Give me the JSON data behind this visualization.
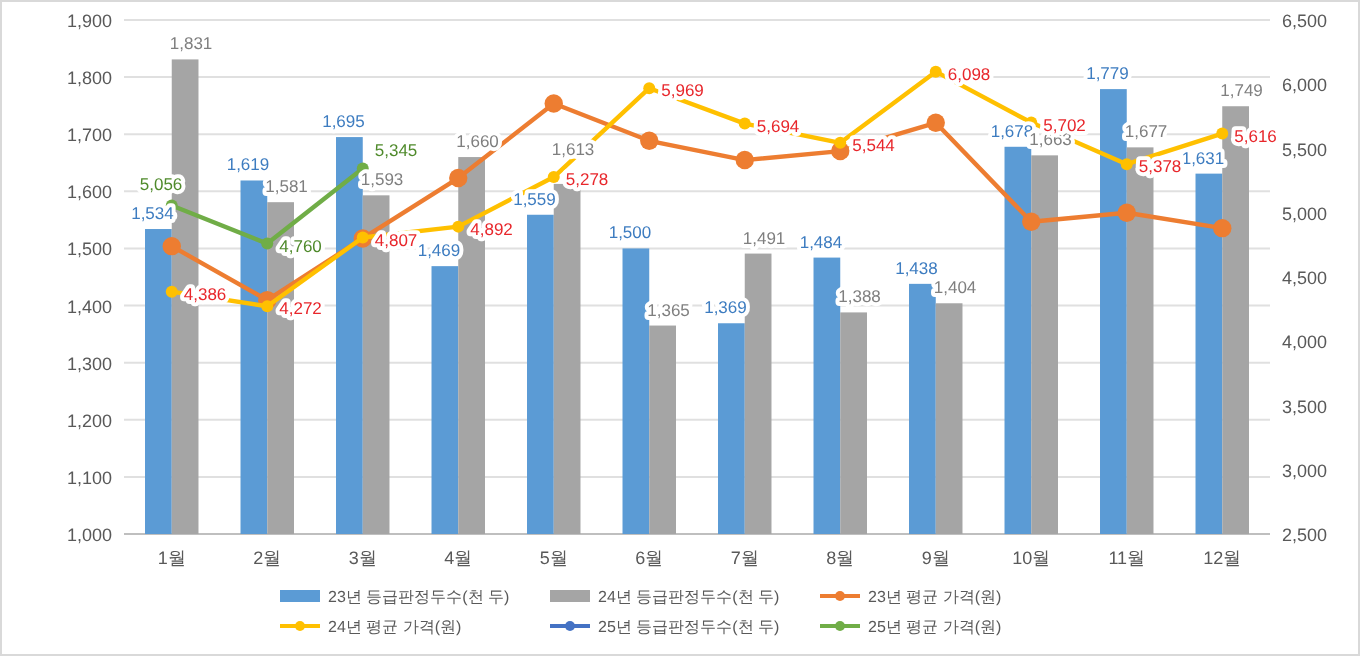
{
  "chart_data": {
    "type": "bar",
    "categories": [
      "1월",
      "2월",
      "3월",
      "4월",
      "5월",
      "6월",
      "7월",
      "8월",
      "9월",
      "10월",
      "11월",
      "12월"
    ],
    "series": [
      {
        "name": "23년 등급판정두수(천 두)",
        "color": "#5b9bd5",
        "values": [
          1534,
          1619,
          1695,
          1469,
          1559,
          1500,
          1369,
          1484,
          1438,
          1678,
          1779,
          1631
        ],
        "value_labels": [
          "1,534",
          "1,619",
          "1,695",
          "1,469",
          "1,559",
          "1,500",
          "1,369",
          "1,484",
          "1,438",
          "1,678",
          "1,779",
          "1,631"
        ]
      },
      {
        "name": "24년 등급판정두수(천 두)",
        "color": "#a5a5a5",
        "values": [
          1831,
          1581,
          1593,
          1660,
          1613,
          1365,
          1491,
          1388,
          1404,
          1663,
          1677,
          1749
        ],
        "value_labels": [
          "1,831",
          "1,581",
          "1,593",
          "1,660",
          "1,613",
          "1,365",
          "1,491",
          "1,388",
          "1,404",
          "1,663",
          "1,677",
          "1,749"
        ]
      },
      {
        "name": "23년 평균 가격(원)",
        "type": "line",
        "axis": "y2",
        "color": "#ed7d31",
        "values": [
          4740,
          4320,
          4800,
          5270,
          5850,
          5560,
          5410,
          5480,
          5700,
          4930,
          5000,
          4880
        ]
      },
      {
        "name": "24년 평균 가격(원)",
        "type": "line",
        "axis": "y2",
        "color": "#ffc000",
        "values": [
          4386,
          4272,
          4807,
          4892,
          5278,
          5969,
          5694,
          5544,
          6098,
          5702,
          5378,
          5616
        ],
        "value_labels": [
          "4,386",
          "4,272",
          "4,807",
          "4,892",
          "5,278",
          "5,969",
          "5,694",
          "5,544",
          "6,098",
          "5,702",
          "5,378",
          "5,616"
        ]
      },
      {
        "name": "25년 등급판정두수(천 두)",
        "type": "line",
        "color": "#4472c4",
        "values": [
          null,
          null,
          null,
          null,
          null,
          null,
          null,
          null,
          null,
          null,
          null,
          null
        ]
      },
      {
        "name": "25년 평균 가격(원)",
        "type": "line",
        "axis": "y2",
        "color": "#70ad47",
        "values": [
          5056,
          4760,
          5345,
          null,
          null,
          null,
          null,
          null,
          null,
          null,
          null,
          null
        ],
        "value_labels": [
          "5,056",
          "4,760",
          "5,345",
          null,
          null,
          null,
          null,
          null,
          null,
          null,
          null,
          null
        ]
      }
    ],
    "ylim": [
      1000,
      1900
    ],
    "yticks": [
      {
        "value": 1000,
        "label": "1,000"
      },
      {
        "value": 1100,
        "label": "1,100"
      },
      {
        "value": 1200,
        "label": "1,200"
      },
      {
        "value": 1300,
        "label": "1,300"
      },
      {
        "value": 1400,
        "label": "1,400"
      },
      {
        "value": 1500,
        "label": "1,500"
      },
      {
        "value": 1600,
        "label": "1,600"
      },
      {
        "value": 1700,
        "label": "1,700"
      },
      {
        "value": 1800,
        "label": "1,800"
      },
      {
        "value": 1900,
        "label": "1,900"
      }
    ],
    "y2lim": [
      2500,
      6500
    ],
    "y2ticks": [
      {
        "value": 2500,
        "label": "2,500"
      },
      {
        "value": 3000,
        "label": "3,000"
      },
      {
        "value": 3500,
        "label": "3,500"
      },
      {
        "value": 4000,
        "label": "4,000"
      },
      {
        "value": 4500,
        "label": "4,500"
      },
      {
        "value": 5000,
        "label": "5,000"
      },
      {
        "value": 5500,
        "label": "5,500"
      },
      {
        "value": 6000,
        "label": "6,000"
      },
      {
        "value": 6500,
        "label": "6,500"
      }
    ],
    "grid": "y",
    "legend": "bottom",
    "marker": "circle",
    "line_style": "solid"
  }
}
